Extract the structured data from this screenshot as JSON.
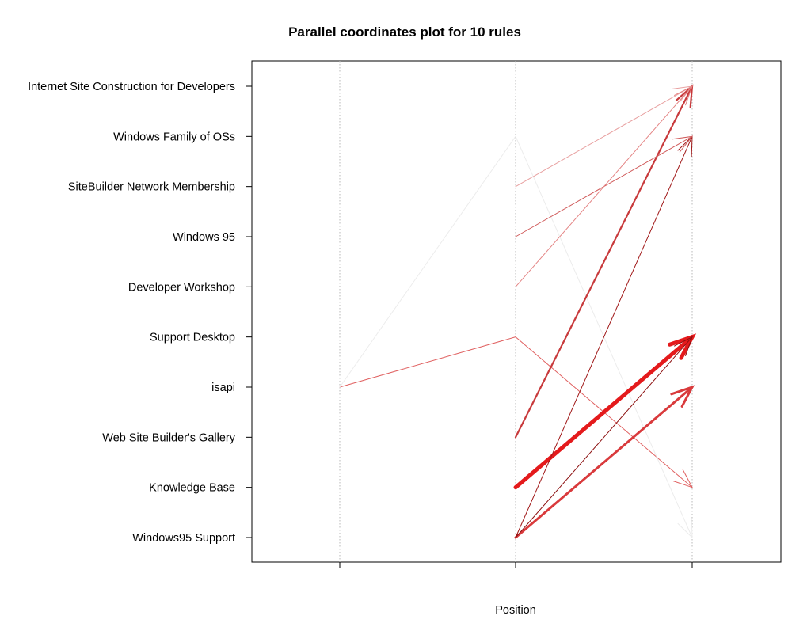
{
  "chart_data": {
    "type": "parallel-coordinates",
    "title": "Parallel coordinates plot for 10 rules",
    "xlabel": "Position",
    "ylabel": "",
    "items": [
      "Windows95 Support",
      "Knowledge Base",
      "Web Site Builder's Gallery",
      "isapi",
      "Support Desktop",
      "Developer Workshop",
      "Windows 95",
      "SiteBuilder Network Membership",
      "Windows Family of OSs",
      "Internet Site Construction for Developers"
    ],
    "positions": [
      1,
      2,
      3
    ],
    "rules": [
      {
        "path": [
          "isapi",
          "Support Desktop",
          "Knowledge Base"
        ],
        "color": "#e06060",
        "weight": 1.0
      },
      {
        "path": [
          "isapi",
          "Windows Family of OSs",
          "Windows95 Support"
        ],
        "color": "#ececec",
        "weight": 1.0
      },
      {
        "path": [
          "Knowledge Base",
          "Support Desktop"
        ],
        "color": "#e41a1c",
        "weight": 5.0
      },
      {
        "path": [
          "Windows95 Support",
          "isapi"
        ],
        "color": "#d93a3c",
        "weight": 3.0
      },
      {
        "path": [
          "Web Site Builder's Gallery",
          "Internet Site Construction for Developers"
        ],
        "color": "#c83a3c",
        "weight": 2.2
      },
      {
        "path": [
          "Windows95 Support",
          "Windows Family of OSs"
        ],
        "color": "#a01818",
        "weight": 1.0
      },
      {
        "path": [
          "Windows95 Support",
          "Support Desktop"
        ],
        "color": "#8c1010",
        "weight": 1.0
      },
      {
        "path": [
          "SiteBuilder Network Membership",
          "Internet Site Construction for Developers"
        ],
        "color": "#e8a0a0",
        "weight": 1.0
      },
      {
        "path": [
          "Windows 95",
          "Windows Family of OSs"
        ],
        "color": "#d05a5a",
        "weight": 1.0
      },
      {
        "path": [
          "Developer Workshop",
          "Internet Site Construction for Developers"
        ],
        "color": "#e48484",
        "weight": 1.0
      }
    ],
    "grid": true,
    "x_tick_labels": false
  }
}
